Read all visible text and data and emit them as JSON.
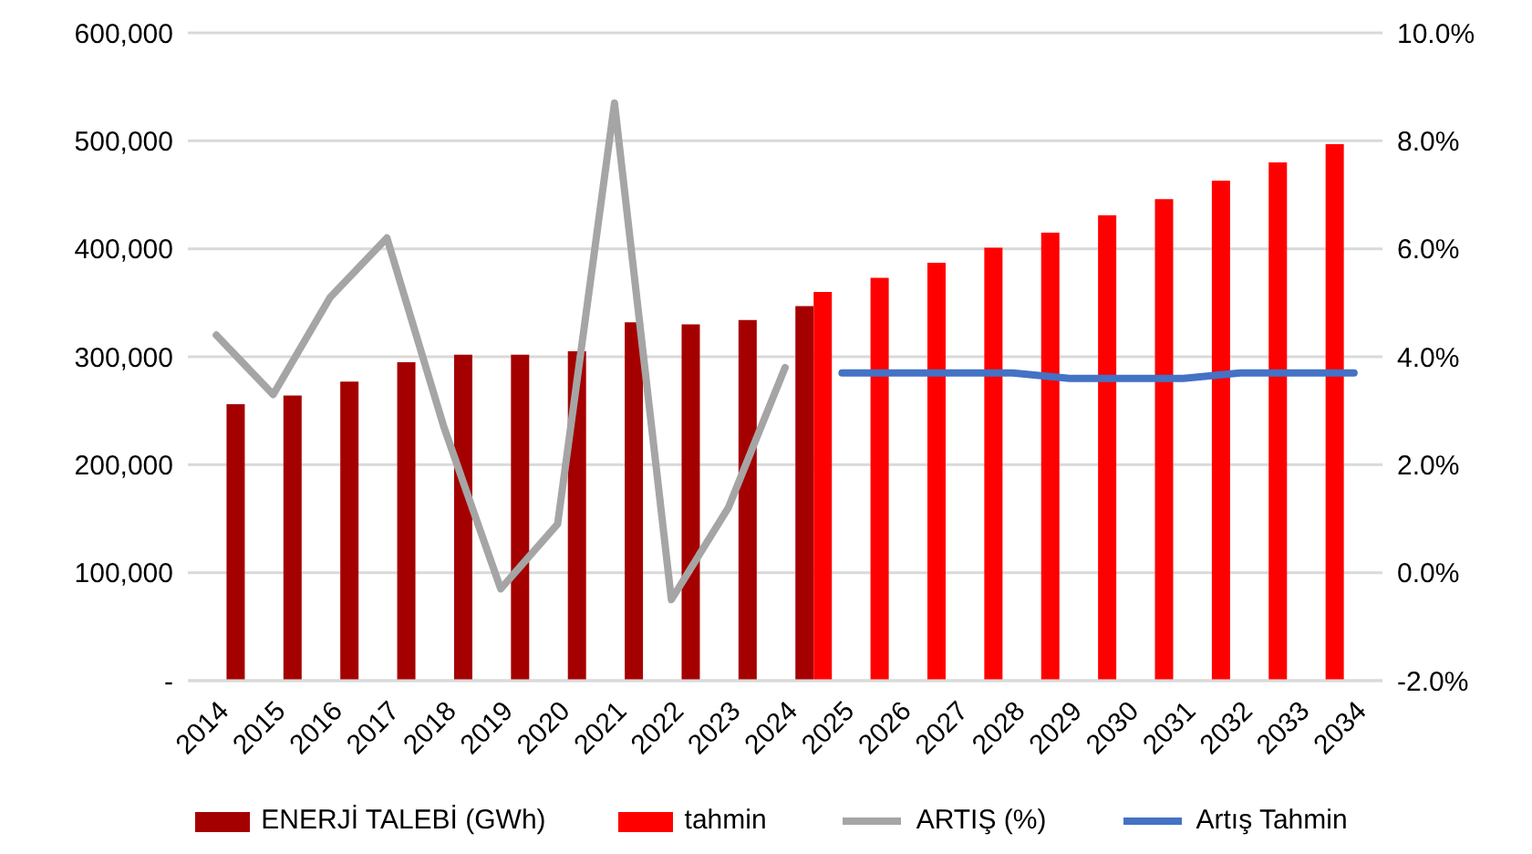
{
  "chart_data": {
    "type": "bar",
    "categories": [
      "2014",
      "2015",
      "2016",
      "2017",
      "2018",
      "2019",
      "2020",
      "2021",
      "2022",
      "2023",
      "2024",
      "2025",
      "2026",
      "2027",
      "2028",
      "2029",
      "2030",
      "2031",
      "2032",
      "2033",
      "2034"
    ],
    "series": [
      {
        "name": "ENERJİ TALEBİ (GWh)",
        "color": "#a50000",
        "values": [
          256000,
          264000,
          277000,
          295000,
          302000,
          302000,
          305000,
          332000,
          330000,
          334000,
          347000,
          null,
          null,
          null,
          null,
          null,
          null,
          null,
          null,
          null,
          null
        ]
      },
      {
        "name": "tahmin",
        "color": "#ff0000",
        "values": [
          null,
          null,
          null,
          null,
          null,
          null,
          null,
          null,
          null,
          null,
          null,
          360000,
          373000,
          387000,
          401000,
          415000,
          431000,
          446000,
          463000,
          480000,
          497000
        ]
      },
      {
        "name": "ARTIŞ (%)",
        "type": "line",
        "axis": "y2",
        "color": "#a5a5a5",
        "values": [
          4.4,
          3.3,
          5.1,
          6.2,
          2.7,
          -0.3,
          0.9,
          8.7,
          -0.5,
          1.2,
          3.8,
          null,
          null,
          null,
          null,
          null,
          null,
          null,
          null,
          null,
          null
        ]
      },
      {
        "name": "Artış Tahmin",
        "type": "line",
        "axis": "y2",
        "color": "#4472c4",
        "values": [
          null,
          null,
          null,
          null,
          null,
          null,
          null,
          null,
          null,
          null,
          null,
          3.7,
          3.7,
          3.7,
          3.7,
          3.6,
          3.6,
          3.6,
          3.7,
          3.7,
          3.7
        ]
      }
    ],
    "ylim": [
      0,
      600000
    ],
    "yticks": [
      {
        "value": 0,
        "label": "-"
      },
      {
        "value": 100000,
        "label": "100,000"
      },
      {
        "value": 200000,
        "label": "200,000"
      },
      {
        "value": 300000,
        "label": "300,000"
      },
      {
        "value": 400000,
        "label": "400,000"
      },
      {
        "value": 500000,
        "label": "500,000"
      },
      {
        "value": 600000,
        "label": "600,000"
      }
    ],
    "y2lim": [
      -2,
      10
    ],
    "y2ticks": [
      {
        "value": -2,
        "label": "-2.0%"
      },
      {
        "value": 0,
        "label": "0.0%"
      },
      {
        "value": 2,
        "label": "2.0%"
      },
      {
        "value": 4,
        "label": "4.0%"
      },
      {
        "value": 6,
        "label": "6.0%"
      },
      {
        "value": 8,
        "label": "8.0%"
      },
      {
        "value": 10,
        "label": "10.0%"
      }
    ],
    "grid": "y",
    "legend": "bottom",
    "marker": "none",
    "line_style": "solid"
  }
}
